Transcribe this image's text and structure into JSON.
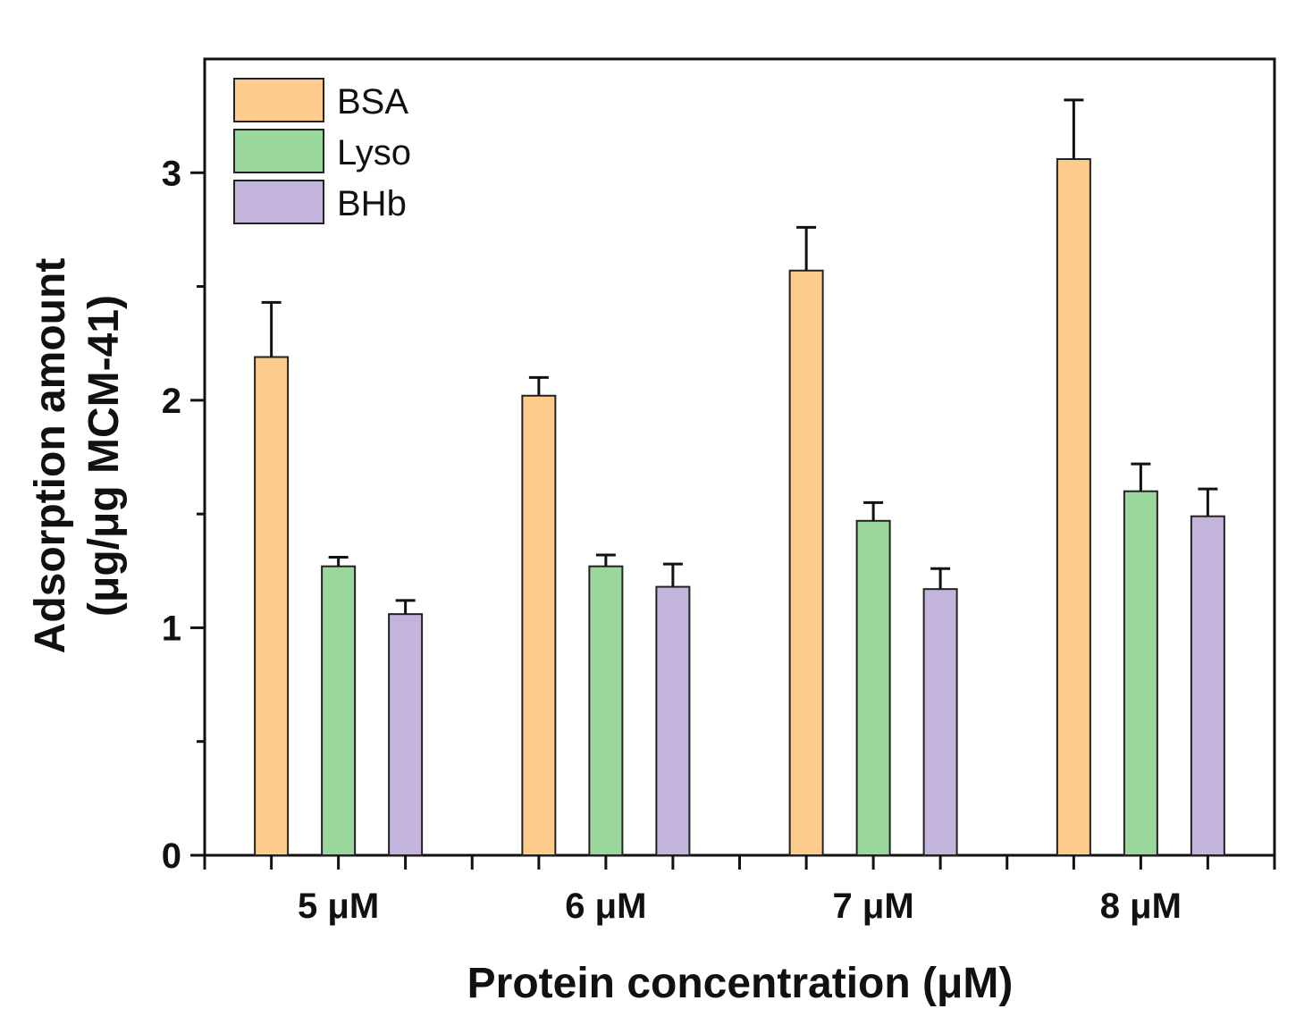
{
  "chart_data": {
    "type": "bar",
    "title": "",
    "xlabel": "Protein concentration (μM)",
    "ylabel_line1": "Adsorption amount",
    "ylabel_line2": "(μg/μg MCM-41)",
    "categories": [
      "5 μM",
      "6 μM",
      "7 μM",
      "8 μM"
    ],
    "ylim": [
      0,
      3.5
    ],
    "yticks": [
      0,
      1,
      2,
      3
    ],
    "yticks_minor": [
      0.5,
      1.5,
      2.5
    ],
    "grid": false,
    "legend_position": "top-left",
    "series": [
      {
        "name": "BSA",
        "color": "#FDCB8B",
        "values": [
          2.19,
          2.02,
          2.57,
          3.06
        ],
        "errors": [
          0.24,
          0.08,
          0.19,
          0.26
        ]
      },
      {
        "name": "Lyso",
        "color": "#99D79D",
        "values": [
          1.27,
          1.27,
          1.47,
          1.6
        ],
        "errors": [
          0.04,
          0.05,
          0.08,
          0.12
        ]
      },
      {
        "name": "BHb",
        "color": "#C3B4DB",
        "values": [
          1.06,
          1.18,
          1.17,
          1.49
        ],
        "errors": [
          0.06,
          0.1,
          0.09,
          0.12
        ]
      }
    ]
  }
}
